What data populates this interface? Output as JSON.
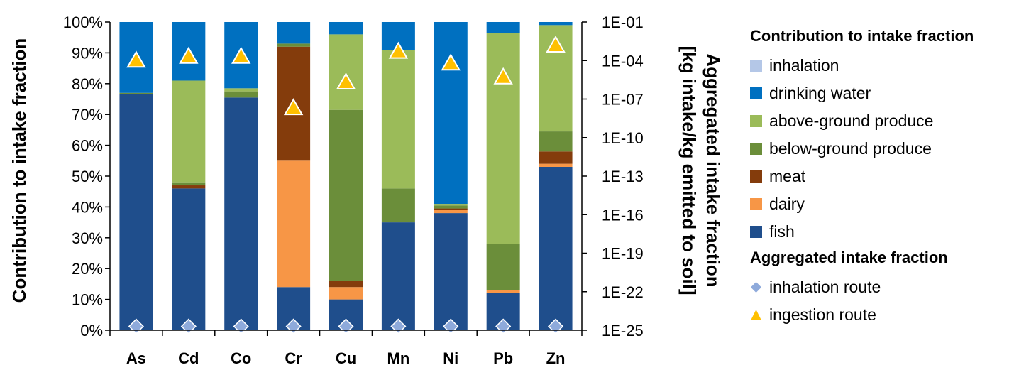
{
  "chart_data": {
    "type": "bar",
    "stacked": true,
    "categories": [
      "As",
      "Cd",
      "Co",
      "Cr",
      "Cu",
      "Mn",
      "Ni",
      "Pb",
      "Zn"
    ],
    "ylabel": "Contribution to intake fraction",
    "y2label_line1": "Aggregated intake fraction",
    "y2label_line2": "[kg intake/kg emitted to soil]",
    "ylim": [
      0,
      100
    ],
    "y_ticks": [
      "0%",
      "10%",
      "20%",
      "30%",
      "40%",
      "50%",
      "60%",
      "70%",
      "80%",
      "90%",
      "100%"
    ],
    "y2_scale": "log",
    "y2lim": [
      1e-25,
      0.1
    ],
    "y2_ticks": [
      "1E-25",
      "1E-22",
      "1E-19",
      "1E-16",
      "1E-13",
      "1E-10",
      "1E-07",
      "1E-04",
      "1E-01"
    ],
    "grid": false,
    "legend_position": "right",
    "series": [
      {
        "name": "fish",
        "color": "#1f4e8c",
        "values": [
          76.5,
          46,
          75.5,
          14,
          10,
          35,
          38,
          12,
          53
        ]
      },
      {
        "name": "dairy",
        "color": "#f79646",
        "values": [
          0,
          0,
          0,
          41,
          4,
          0,
          1,
          1,
          1
        ]
      },
      {
        "name": "meat",
        "color": "#843c0c",
        "values": [
          0,
          1,
          0,
          37,
          2,
          0,
          0.5,
          0,
          4
        ]
      },
      {
        "name": "below-ground produce",
        "color": "#6b8e3a",
        "values": [
          0.5,
          1,
          2,
          1,
          55.5,
          11,
          1,
          15,
          6.5
        ]
      },
      {
        "name": "above-ground produce",
        "color": "#9bbb59",
        "values": [
          0,
          33,
          1,
          0,
          24.5,
          45,
          0.5,
          68.5,
          34.5
        ]
      },
      {
        "name": "drinking water",
        "color": "#0070c0",
        "values": [
          23,
          19,
          21.5,
          7,
          4,
          9,
          59,
          3.5,
          1
        ]
      },
      {
        "name": "inhalation",
        "color": "#b4c7e7",
        "values": [
          0,
          0,
          0,
          0,
          0,
          0,
          0,
          0,
          0
        ]
      }
    ],
    "markers": [
      {
        "name": "inhalation route",
        "shape": "diamond",
        "color": "#8eaadb",
        "values": [
          2e-25,
          2e-25,
          2e-25,
          2e-25,
          2e-25,
          2e-25,
          2e-25,
          2e-25,
          2e-25
        ]
      },
      {
        "name": "ingestion route",
        "shape": "triangle",
        "color": "#ffc000",
        "values": [
          0.0001,
          0.0002,
          0.0002,
          2e-08,
          2e-06,
          0.0005,
          6e-05,
          5e-06,
          0.0015
        ]
      }
    ]
  },
  "legend": {
    "title_contribution": "Contribution to intake fraction",
    "title_aggregated": "Aggregated intake fraction",
    "bar_items": [
      "inhalation",
      "drinking water",
      "above-ground produce",
      "below-ground produce",
      "meat",
      "dairy",
      "fish"
    ],
    "marker_items": [
      "inhalation route",
      "ingestion route"
    ]
  }
}
